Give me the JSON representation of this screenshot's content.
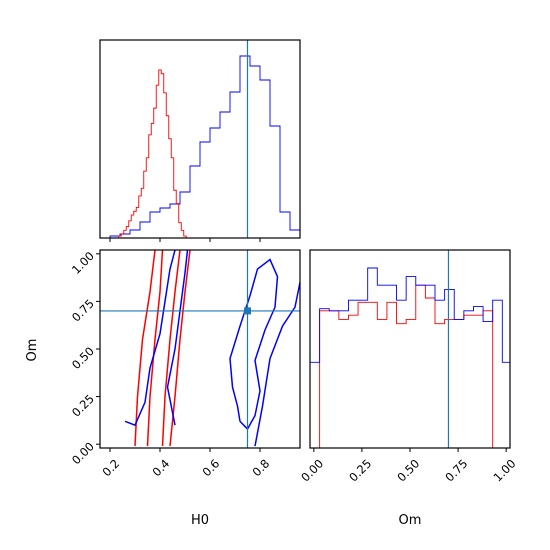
{
  "chart_data": {
    "type": "corner",
    "parameters": [
      "H0",
      "Om"
    ],
    "axis_labels": {
      "x_left": "H0",
      "x_right": "Om",
      "y_left": "Om"
    },
    "truth": {
      "H0": 0.75,
      "Om": 0.7
    },
    "colors": {
      "series_a": "#0000ff",
      "series_b": "#ff0000",
      "truth": "#1f77b4"
    },
    "ranges": {
      "H0": [
        0.16,
        0.96
      ],
      "Om": [
        -0.02,
        1.02
      ]
    },
    "ticks": {
      "H0": [
        "0.2",
        "0.4",
        "0.6",
        "0.8"
      ],
      "Om": [
        "0.00",
        "0.25",
        "0.50",
        "0.75",
        "1.00"
      ]
    },
    "histograms": {
      "H0": {
        "edges": [
          0.16,
          0.2,
          0.24,
          0.28,
          0.32,
          0.36,
          0.4,
          0.44,
          0.48,
          0.52,
          0.56,
          0.6,
          0.64,
          0.68,
          0.72,
          0.76,
          0.8,
          0.84,
          0.88,
          0.92,
          0.96
        ],
        "series_a": [
          0,
          1,
          2,
          4,
          8,
          13,
          15,
          17,
          23,
          36,
          48,
          55,
          63,
          73,
          91,
          86,
          79,
          56,
          13,
          4
        ],
        "series_b_fine": {
          "x": [
            0.24,
            0.25,
            0.26,
            0.27,
            0.28,
            0.29,
            0.3,
            0.31,
            0.32,
            0.33,
            0.34,
            0.35,
            0.36,
            0.37,
            0.38,
            0.39,
            0.4,
            0.41,
            0.42,
            0.43,
            0.44,
            0.45,
            0.46,
            0.47,
            0.48,
            0.49,
            0.5,
            0.51
          ],
          "values": [
            1,
            2,
            4,
            6,
            9,
            12,
            14,
            16,
            22,
            26,
            35,
            42,
            54,
            60,
            68,
            80,
            88,
            86,
            76,
            64,
            52,
            42,
            25,
            18,
            8,
            4,
            1,
            0
          ]
        }
      },
      "Om": {
        "edges": [
          -0.02,
          0.03,
          0.08,
          0.13,
          0.18,
          0.23,
          0.28,
          0.33,
          0.38,
          0.43,
          0.48,
          0.53,
          0.58,
          0.63,
          0.68,
          0.73,
          0.78,
          0.83,
          0.88,
          0.93,
          0.98,
          1.02
        ],
        "series_a": [
          40,
          65,
          64,
          64,
          69,
          69,
          84,
          76,
          76,
          69,
          80,
          76,
          76,
          69,
          74,
          60,
          64,
          66,
          59,
          69,
          40
        ],
        "series_b": [
          0,
          64,
          64,
          60,
          62,
          68,
          68,
          60,
          68,
          58,
          60,
          76,
          70,
          58,
          60,
          60,
          62,
          62,
          64,
          0,
          0
        ]
      }
    },
    "contours": {
      "series_b": [
        [
          [
            0.3,
            -0.01
          ],
          [
            0.31,
            0.25
          ],
          [
            0.33,
            0.55
          ],
          [
            0.36,
            0.8
          ],
          [
            0.38,
            1.02
          ]
        ],
        [
          [
            0.35,
            -0.01
          ],
          [
            0.36,
            0.25
          ],
          [
            0.38,
            0.55
          ],
          [
            0.4,
            0.8
          ],
          [
            0.41,
            1.02
          ]
        ],
        [
          [
            0.41,
            -0.01
          ],
          [
            0.42,
            0.25
          ],
          [
            0.44,
            0.55
          ],
          [
            0.46,
            0.8
          ],
          [
            0.48,
            1.02
          ]
        ],
        [
          [
            0.44,
            -0.01
          ],
          [
            0.46,
            0.25
          ],
          [
            0.48,
            0.55
          ],
          [
            0.5,
            0.8
          ],
          [
            0.52,
            1.02
          ]
        ]
      ],
      "series_a": [
        [
          [
            0.26,
            0.12
          ],
          [
            0.3,
            0.1
          ],
          [
            0.34,
            0.22
          ],
          [
            0.36,
            0.4
          ],
          [
            0.4,
            0.58
          ],
          [
            0.42,
            0.75
          ],
          [
            0.44,
            0.92
          ],
          [
            0.46,
            1.02
          ]
        ],
        [
          [
            0.46,
            0.1
          ],
          [
            0.43,
            0.3
          ],
          [
            0.46,
            0.5
          ],
          [
            0.48,
            0.7
          ],
          [
            0.5,
            0.9
          ],
          [
            0.51,
            1.02
          ]
        ],
        [
          [
            0.72,
            0.12
          ],
          [
            0.75,
            0.08
          ],
          [
            0.78,
            0.15
          ],
          [
            0.8,
            0.28
          ],
          [
            0.78,
            0.44
          ],
          [
            0.82,
            0.6
          ],
          [
            0.86,
            0.72
          ],
          [
            0.87,
            0.88
          ],
          [
            0.84,
            0.97
          ],
          [
            0.79,
            0.92
          ],
          [
            0.76,
            0.78
          ],
          [
            0.72,
            0.62
          ],
          [
            0.68,
            0.45
          ],
          [
            0.69,
            0.3
          ],
          [
            0.71,
            0.2
          ],
          [
            0.72,
            0.12
          ]
        ],
        [
          [
            0.78,
            -0.01
          ],
          [
            0.81,
            0.2
          ],
          [
            0.84,
            0.45
          ],
          [
            0.89,
            0.62
          ],
          [
            0.94,
            0.72
          ],
          [
            0.96,
            0.85
          ]
        ]
      ]
    }
  }
}
